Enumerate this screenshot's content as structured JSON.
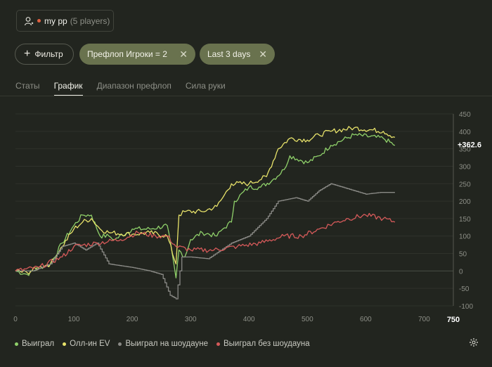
{
  "player": {
    "name": "my pp",
    "count": "(5 players)"
  },
  "filters": {
    "add_label": "Фильтр",
    "chips": [
      {
        "label": "Префлоп Игроки = 2"
      },
      {
        "label": "Last 3 days"
      }
    ]
  },
  "tabs": [
    {
      "label": "Статы",
      "active": false
    },
    {
      "label": "График",
      "active": true
    },
    {
      "label": "Диапазон префлоп",
      "active": false
    },
    {
      "label": "Сила руки",
      "active": false
    }
  ],
  "colors": {
    "won": "#8fd06a",
    "allin_ev": "#e8e36a",
    "showdown": "#8a8a86",
    "non_showdown": "#d65a5a"
  },
  "chart_data": {
    "type": "line",
    "x_ticks": [
      "0",
      "100",
      "200",
      "300",
      "400",
      "500",
      "600",
      "700"
    ],
    "x_max_label": "750",
    "xlim": [
      0,
      750
    ],
    "y_ticks": [
      "450",
      "400",
      "350",
      "300",
      "250",
      "200",
      "150",
      "100",
      "50",
      "0",
      "-50",
      "-100"
    ],
    "ylim": [
      -100,
      450
    ],
    "current_value_label": "+362.6",
    "legend_position": "bottom-left",
    "series": [
      {
        "name": "Выиграл",
        "color": "#8fd06a",
        "points": [
          [
            0,
            0
          ],
          [
            20,
            -10
          ],
          [
            40,
            10
          ],
          [
            60,
            20
          ],
          [
            80,
            80
          ],
          [
            100,
            130
          ],
          [
            115,
            160
          ],
          [
            130,
            160
          ],
          [
            145,
            100
          ],
          [
            160,
            100
          ],
          [
            170,
            90
          ],
          [
            200,
            120
          ],
          [
            230,
            120
          ],
          [
            260,
            130
          ],
          [
            275,
            -20
          ],
          [
            280,
            60
          ],
          [
            290,
            40
          ],
          [
            300,
            90
          ],
          [
            320,
            110
          ],
          [
            345,
            100
          ],
          [
            355,
            120
          ],
          [
            370,
            140
          ],
          [
            375,
            200
          ],
          [
            400,
            240
          ],
          [
            420,
            240
          ],
          [
            440,
            260
          ],
          [
            460,
            290
          ],
          [
            470,
            330
          ],
          [
            500,
            310
          ],
          [
            520,
            330
          ],
          [
            540,
            360
          ],
          [
            580,
            390
          ],
          [
            630,
            380
          ],
          [
            650,
            360
          ]
        ]
      },
      {
        "name": "Олл-ин EV",
        "color": "#e8e36a",
        "points": [
          [
            0,
            0
          ],
          [
            20,
            -5
          ],
          [
            40,
            10
          ],
          [
            60,
            20
          ],
          [
            80,
            70
          ],
          [
            100,
            120
          ],
          [
            115,
            140
          ],
          [
            130,
            150
          ],
          [
            145,
            120
          ],
          [
            160,
            110
          ],
          [
            200,
            105
          ],
          [
            230,
            110
          ],
          [
            260,
            100
          ],
          [
            275,
            20
          ],
          [
            280,
            160
          ],
          [
            290,
            170
          ],
          [
            320,
            170
          ],
          [
            345,
            185
          ],
          [
            355,
            210
          ],
          [
            370,
            250
          ],
          [
            400,
            250
          ],
          [
            430,
            270
          ],
          [
            450,
            350
          ],
          [
            470,
            380
          ],
          [
            500,
            375
          ],
          [
            520,
            390
          ],
          [
            540,
            400
          ],
          [
            580,
            410
          ],
          [
            630,
            400
          ],
          [
            650,
            383
          ]
        ]
      },
      {
        "name": "Выиграл на шоудауне",
        "color": "#8a8a86",
        "points": [
          [
            0,
            0
          ],
          [
            30,
            0
          ],
          [
            60,
            20
          ],
          [
            80,
            70
          ],
          [
            100,
            80
          ],
          [
            120,
            60
          ],
          [
            140,
            80
          ],
          [
            160,
            20
          ],
          [
            200,
            10
          ],
          [
            230,
            0
          ],
          [
            250,
            -10
          ],
          [
            265,
            -70
          ],
          [
            275,
            -80
          ],
          [
            285,
            40
          ],
          [
            300,
            40
          ],
          [
            330,
            35
          ],
          [
            370,
            80
          ],
          [
            400,
            100
          ],
          [
            430,
            150
          ],
          [
            450,
            200
          ],
          [
            480,
            210
          ],
          [
            500,
            200
          ],
          [
            520,
            230
          ],
          [
            540,
            250
          ],
          [
            560,
            240
          ],
          [
            600,
            220
          ],
          [
            625,
            225
          ],
          [
            650,
            225
          ]
        ]
      },
      {
        "name": "Выиграл без шоудауна",
        "color": "#d65a5a",
        "points": [
          [
            0,
            0
          ],
          [
            40,
            10
          ],
          [
            80,
            40
          ],
          [
            100,
            70
          ],
          [
            140,
            80
          ],
          [
            180,
            90
          ],
          [
            210,
            110
          ],
          [
            240,
            100
          ],
          [
            260,
            100
          ],
          [
            275,
            70
          ],
          [
            300,
            60
          ],
          [
            340,
            60
          ],
          [
            380,
            70
          ],
          [
            420,
            80
          ],
          [
            460,
            100
          ],
          [
            490,
            100
          ],
          [
            520,
            120
          ],
          [
            550,
            140
          ],
          [
            570,
            150
          ],
          [
            600,
            160
          ],
          [
            630,
            150
          ],
          [
            650,
            140
          ]
        ]
      }
    ]
  }
}
